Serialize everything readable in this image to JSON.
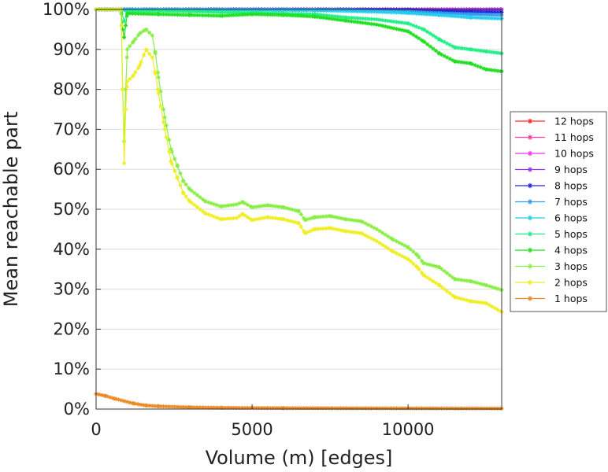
{
  "chart_data": {
    "type": "line",
    "title": "",
    "xlabel": "Volume (m) [edges]",
    "ylabel": "Mean reachable part",
    "xlim": [
      0,
      13000
    ],
    "ylim": [
      0,
      100
    ],
    "x_ticks": [
      {
        "value": 0,
        "label": "0"
      },
      {
        "value": 5000,
        "label": "5000"
      },
      {
        "value": 10000,
        "label": "10000"
      }
    ],
    "y_ticks": [
      {
        "value": 0,
        "label": "0%"
      },
      {
        "value": 10,
        "label": "10%"
      },
      {
        "value": 20,
        "label": "20%"
      },
      {
        "value": 30,
        "label": "30%"
      },
      {
        "value": 40,
        "label": "40%"
      },
      {
        "value": 50,
        "label": "50%"
      },
      {
        "value": 60,
        "label": "60%"
      },
      {
        "value": 70,
        "label": "70%"
      },
      {
        "value": 80,
        "label": "80%"
      },
      {
        "value": 90,
        "label": "90%"
      },
      {
        "value": 100,
        "label": "100%"
      }
    ],
    "grid": "horizontal",
    "legend_position": "right",
    "series": [
      {
        "name": "12 hops",
        "color": "#ff2a2a",
        "points": [
          [
            0,
            100
          ],
          [
            13000,
            100
          ]
        ]
      },
      {
        "name": "11 hops",
        "color": "#ff3aa0",
        "points": [
          [
            0,
            100
          ],
          [
            13000,
            100
          ]
        ]
      },
      {
        "name": "10 hops",
        "color": "#ee33ee",
        "points": [
          [
            0,
            100
          ],
          [
            13000,
            100
          ]
        ]
      },
      {
        "name": "9 hops",
        "color": "#9a33ee",
        "points": [
          [
            0,
            100
          ],
          [
            13000,
            100
          ]
        ]
      },
      {
        "name": "8 hops",
        "color": "#2222dd",
        "points": [
          [
            0,
            100
          ],
          [
            8000,
            100
          ],
          [
            10000,
            99.9
          ],
          [
            11000,
            99.6
          ],
          [
            12000,
            99.4
          ],
          [
            13000,
            99.3
          ]
        ]
      },
      {
        "name": "7 hops",
        "color": "#3399ee",
        "points": [
          [
            0,
            100
          ],
          [
            8000,
            99.9
          ],
          [
            10000,
            99.5
          ],
          [
            11000,
            99.1
          ],
          [
            12000,
            98.8
          ],
          [
            13000,
            98.6
          ]
        ]
      },
      {
        "name": "6 hops",
        "color": "#22ccee",
        "points": [
          [
            0,
            100
          ],
          [
            7000,
            99.8
          ],
          [
            9000,
            99.4
          ],
          [
            10000,
            99.1
          ],
          [
            11000,
            98.6
          ],
          [
            12000,
            98.0
          ],
          [
            13000,
            97.7
          ]
        ]
      },
      {
        "name": "5 hops",
        "color": "#22ee88",
        "points": [
          [
            0,
            100
          ],
          [
            800,
            100
          ],
          [
            900,
            97
          ],
          [
            1000,
            99.5
          ],
          [
            2000,
            99.6
          ],
          [
            3000,
            99.5
          ],
          [
            4000,
            99.3
          ],
          [
            5000,
            99.2
          ],
          [
            6000,
            99.0
          ],
          [
            7000,
            98.8
          ],
          [
            8000,
            98.0
          ],
          [
            9000,
            97.5
          ],
          [
            10000,
            96.5
          ],
          [
            10500,
            95.0
          ],
          [
            11000,
            92.5
          ],
          [
            11500,
            90.5
          ],
          [
            12000,
            90.0
          ],
          [
            12500,
            89.5
          ],
          [
            13000,
            89.0
          ]
        ]
      },
      {
        "name": "4 hops",
        "color": "#22dd22",
        "points": [
          [
            0,
            100
          ],
          [
            800,
            100
          ],
          [
            850,
            95
          ],
          [
            900,
            93
          ],
          [
            950,
            96
          ],
          [
            1000,
            99
          ],
          [
            2000,
            98.8
          ],
          [
            3000,
            98.6
          ],
          [
            4000,
            98.4
          ],
          [
            5000,
            98.8
          ],
          [
            6000,
            98.6
          ],
          [
            7000,
            98.2
          ],
          [
            8000,
            97.2
          ],
          [
            9000,
            96.2
          ],
          [
            10000,
            94.5
          ],
          [
            10500,
            92.0
          ],
          [
            11000,
            89.0
          ],
          [
            11500,
            87.0
          ],
          [
            12000,
            86.5
          ],
          [
            12500,
            85.0
          ],
          [
            13000,
            84.5
          ]
        ]
      },
      {
        "name": "3 hops",
        "color": "#88ee44",
        "points": [
          [
            0,
            100
          ],
          [
            800,
            100
          ],
          [
            850,
            80
          ],
          [
            900,
            67
          ],
          [
            950,
            80
          ],
          [
            1000,
            90
          ],
          [
            1200,
            92
          ],
          [
            1400,
            94
          ],
          [
            1600,
            95
          ],
          [
            1800,
            93.5
          ],
          [
            1900,
            89
          ],
          [
            2000,
            83
          ],
          [
            2200,
            73
          ],
          [
            2400,
            65
          ],
          [
            2600,
            61
          ],
          [
            2800,
            57
          ],
          [
            3000,
            55
          ],
          [
            3500,
            52
          ],
          [
            4000,
            50.7
          ],
          [
            4500,
            51.2
          ],
          [
            4700,
            51.8
          ],
          [
            5000,
            50.5
          ],
          [
            5500,
            51
          ],
          [
            6000,
            50.5
          ],
          [
            6500,
            49.5
          ],
          [
            6700,
            47.3
          ],
          [
            7000,
            48
          ],
          [
            7500,
            48.3
          ],
          [
            8000,
            47.5
          ],
          [
            8500,
            47
          ],
          [
            9000,
            45
          ],
          [
            9500,
            42.5
          ],
          [
            10000,
            40.5
          ],
          [
            10300,
            38.5
          ],
          [
            10500,
            36.5
          ],
          [
            11000,
            35.5
          ],
          [
            11500,
            32.5
          ],
          [
            12000,
            32
          ],
          [
            12500,
            31
          ],
          [
            13000,
            29.8
          ]
        ]
      },
      {
        "name": "2 hops",
        "color": "#eeee22",
        "points": [
          [
            0,
            100
          ],
          [
            800,
            100
          ],
          [
            850,
            80
          ],
          [
            900,
            61.5
          ],
          [
            950,
            75
          ],
          [
            1000,
            82
          ],
          [
            1200,
            83.5
          ],
          [
            1400,
            86
          ],
          [
            1600,
            90
          ],
          [
            1800,
            88
          ],
          [
            1900,
            84
          ],
          [
            2000,
            79
          ],
          [
            2200,
            70
          ],
          [
            2400,
            62
          ],
          [
            2600,
            58
          ],
          [
            2800,
            54
          ],
          [
            3000,
            52
          ],
          [
            3500,
            49
          ],
          [
            4000,
            47.5
          ],
          [
            4500,
            47.8
          ],
          [
            4700,
            48.8
          ],
          [
            5000,
            47.3
          ],
          [
            5500,
            48
          ],
          [
            6000,
            47.5
          ],
          [
            6500,
            46.5
          ],
          [
            6700,
            44
          ],
          [
            7000,
            45
          ],
          [
            7500,
            45.3
          ],
          [
            8000,
            44.5
          ],
          [
            8500,
            44
          ],
          [
            9000,
            42
          ],
          [
            9500,
            39.5
          ],
          [
            10000,
            37.5
          ],
          [
            10300,
            35.5
          ],
          [
            10500,
            33.5
          ],
          [
            11000,
            31
          ],
          [
            11500,
            28
          ],
          [
            12000,
            27
          ],
          [
            12500,
            26.5
          ],
          [
            13000,
            24.3
          ]
        ]
      },
      {
        "name": "1 hops",
        "color": "#ee8822",
        "points": [
          [
            0,
            3.8
          ],
          [
            300,
            3.3
          ],
          [
            600,
            2.6
          ],
          [
            900,
            2.0
          ],
          [
            1200,
            1.4
          ],
          [
            1600,
            0.9
          ],
          [
            2000,
            0.7
          ],
          [
            3000,
            0.45
          ],
          [
            4000,
            0.35
          ],
          [
            6000,
            0.25
          ],
          [
            9000,
            0.2
          ],
          [
            13000,
            0.15
          ]
        ]
      }
    ]
  }
}
